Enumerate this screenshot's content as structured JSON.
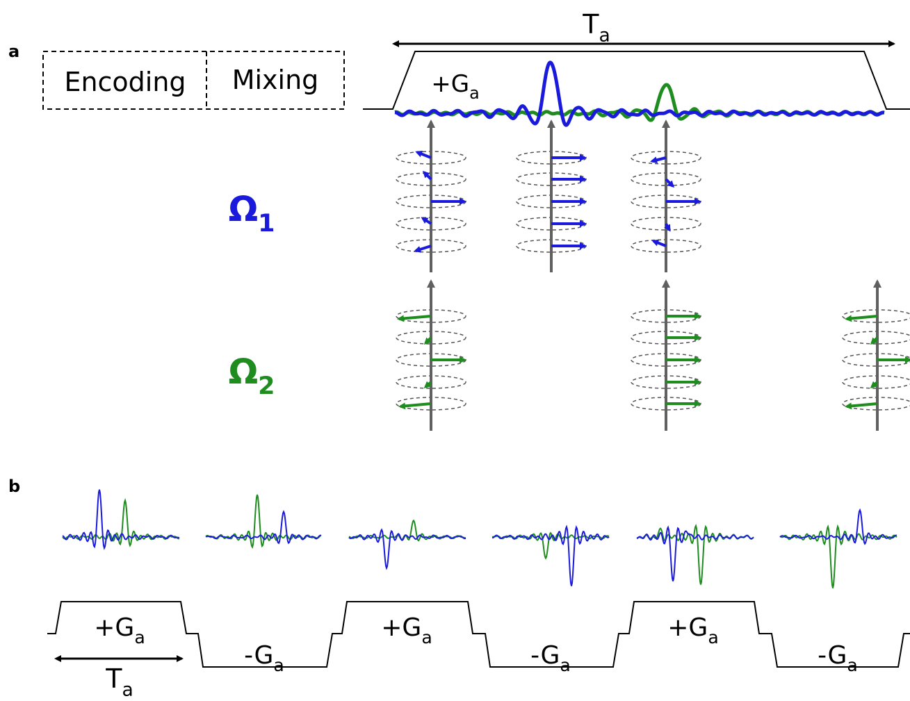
{
  "panel_a": {
    "label": "a",
    "boxes": [
      "Encoding",
      "Mixing"
    ],
    "duration": {
      "symbol": "T",
      "subscript": "a"
    },
    "gradient": {
      "symbol": "+G",
      "subscript": "a"
    },
    "species": [
      {
        "symbol": "Ω",
        "subscript": "1",
        "color": "#1a1adc"
      },
      {
        "symbol": "Ω",
        "subscript": "2",
        "color": "#1e8c1e"
      }
    ]
  },
  "panel_b": {
    "label": "b",
    "gradients": [
      {
        "symbol": "+G",
        "subscript": "a"
      },
      {
        "symbol": "-G",
        "subscript": "a"
      },
      {
        "symbol": "+G",
        "subscript": "a"
      },
      {
        "symbol": "-G",
        "subscript": "a"
      },
      {
        "symbol": "+G",
        "subscript": "a"
      },
      {
        "symbol": "-G",
        "subscript": "a"
      }
    ],
    "duration": {
      "symbol": "T",
      "subscript": "a"
    }
  }
}
